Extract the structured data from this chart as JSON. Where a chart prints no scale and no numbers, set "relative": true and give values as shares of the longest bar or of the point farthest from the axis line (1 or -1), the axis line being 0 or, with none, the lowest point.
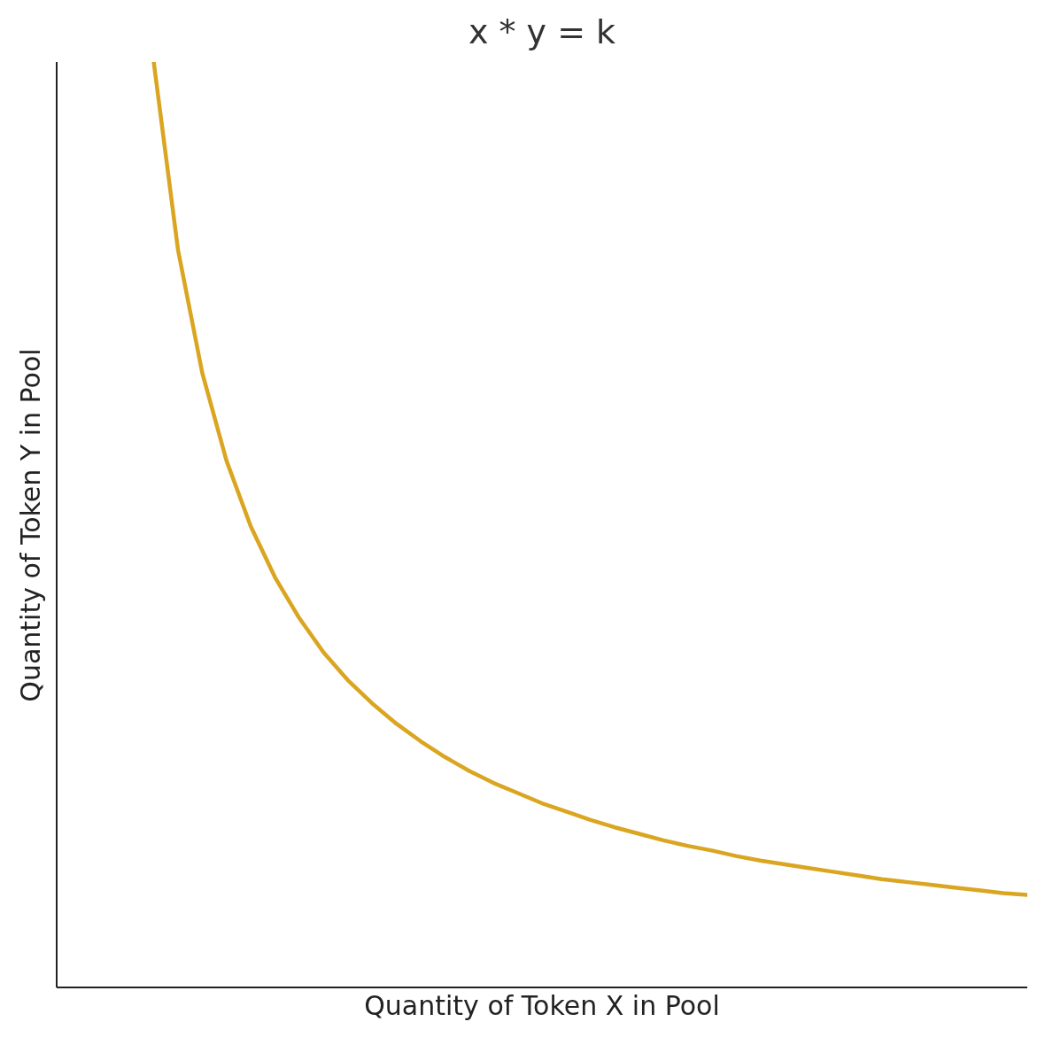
{
  "chart_data": {
    "type": "line",
    "title": "x * y = k",
    "xlabel": "Quantity of Token X in Pool",
    "ylabel": "Quantity of Token Y in Pool",
    "relative": true,
    "tick_labels": false,
    "grid": false,
    "legend": false,
    "marker": "none",
    "line_style": "solid",
    "categories": [
      null,
      null,
      null,
      null,
      null,
      null,
      null,
      null,
      null,
      null,
      null,
      null,
      null,
      null,
      null,
      null,
      null,
      null,
      null,
      null,
      null,
      null,
      null,
      null,
      null,
      null,
      null,
      null,
      null,
      null,
      null,
      null,
      null,
      null,
      null,
      null,
      null,
      null,
      null,
      null,
      null
    ],
    "series": [
      {
        "color": "#daa520",
        "values": [
          null,
          null,
          null,
          null,
          1.0,
          0.797,
          0.664,
          0.569,
          0.498,
          0.443,
          0.399,
          0.362,
          0.332,
          0.307,
          0.285,
          0.266,
          0.249,
          0.234,
          0.221,
          0.21,
          0.199,
          0.19,
          0.181,
          0.173,
          0.166,
          0.159,
          0.153,
          0.148,
          0.142,
          0.137,
          0.133,
          0.129,
          0.125,
          0.121,
          0.117,
          0.114,
          0.111,
          0.108,
          0.105,
          0.102,
          0.1
        ]
      }
    ]
  }
}
